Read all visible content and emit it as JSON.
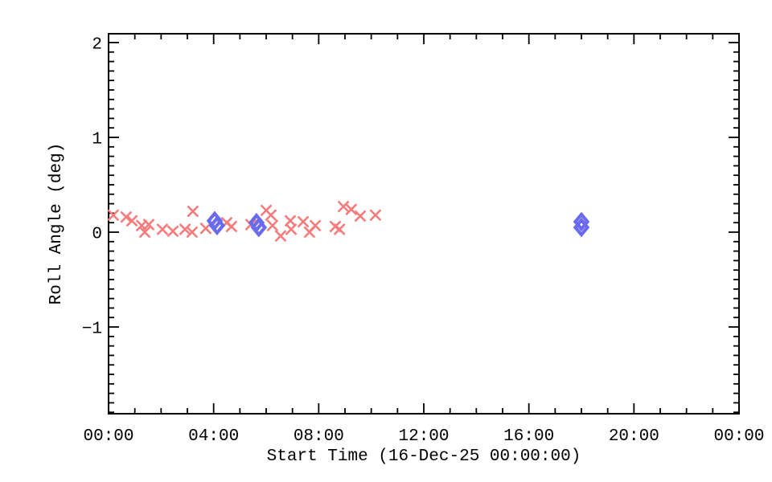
{
  "window": {
    "background": "#ffffff",
    "description": "Roll angle vs start time scatter plot"
  },
  "chart_data": {
    "type": "scatter",
    "title": "",
    "xlabel": "Start Time (16-Dec-25 00:00:00)",
    "ylabel": "Roll Angle (deg)",
    "xlim_hours": [
      0,
      24
    ],
    "ylim": [
      -1.915,
      2.093
    ],
    "grid": false,
    "legend": null,
    "axis_color": "#000000",
    "x_major_ticks": [
      {
        "hour": 0,
        "label": "00:00"
      },
      {
        "hour": 4,
        "label": "04:00"
      },
      {
        "hour": 8,
        "label": "08:00"
      },
      {
        "hour": 12,
        "label": "12:00"
      },
      {
        "hour": 16,
        "label": "16:00"
      },
      {
        "hour": 20,
        "label": "20:00"
      },
      {
        "hour": 24,
        "label": "00:00"
      }
    ],
    "x_minor_step_hours": 1,
    "y_major_ticks": [
      {
        "value": -1,
        "label": "−1"
      },
      {
        "value": 0,
        "label": "0"
      },
      {
        "value": 1,
        "label": "1"
      },
      {
        "value": 2,
        "label": "2"
      }
    ],
    "y_minor_step": 0.1,
    "series": [
      {
        "name": "roll-angle-x-points",
        "marker": "x",
        "color": "#f57c7c",
        "points": [
          [
            0.18,
            0.18
          ],
          [
            0.67,
            0.16
          ],
          [
            0.89,
            0.12
          ],
          [
            1.26,
            0.07
          ],
          [
            1.53,
            0.08
          ],
          [
            1.38,
            0.0
          ],
          [
            2.05,
            0.03
          ],
          [
            2.45,
            0.01
          ],
          [
            2.91,
            0.03
          ],
          [
            3.18,
            0.0
          ],
          [
            3.21,
            0.22
          ],
          [
            3.7,
            0.04
          ],
          [
            4.5,
            0.1
          ],
          [
            4.68,
            0.06
          ],
          [
            5.42,
            0.08
          ],
          [
            6.0,
            0.23
          ],
          [
            6.18,
            0.18
          ],
          [
            6.24,
            0.07
          ],
          [
            6.55,
            -0.04
          ],
          [
            6.92,
            0.12
          ],
          [
            6.95,
            0.03
          ],
          [
            7.41,
            0.11
          ],
          [
            7.65,
            0.0
          ],
          [
            7.87,
            0.07
          ],
          [
            8.63,
            0.06
          ],
          [
            8.79,
            0.03
          ],
          [
            8.94,
            0.27
          ],
          [
            9.24,
            0.24
          ],
          [
            9.58,
            0.17
          ],
          [
            10.16,
            0.18
          ]
        ]
      },
      {
        "name": "roll-angle-diamond-points",
        "marker": "diamond",
        "color": "#6a6aef",
        "points": [
          [
            4.04,
            0.12
          ],
          [
            4.13,
            0.07
          ],
          [
            5.63,
            0.1
          ],
          [
            5.72,
            0.05
          ],
          [
            18.0,
            0.11
          ],
          [
            18.0,
            0.05
          ]
        ]
      }
    ]
  }
}
